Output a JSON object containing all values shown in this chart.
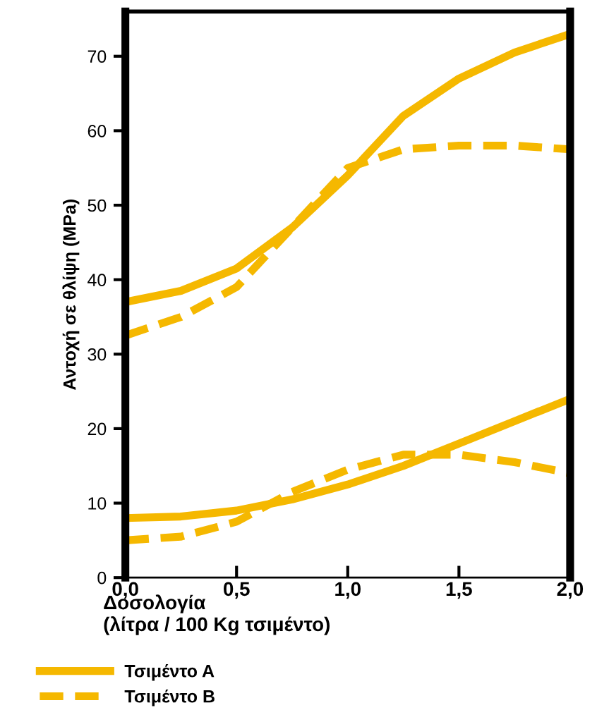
{
  "chart_data": {
    "type": "line",
    "ylabel": "Αντοχή σε θλίψη (MPa)",
    "xlabel": "Δοσολογία\n(λίτρα / 100 Kg τσιμέντο)",
    "x": [
      0,
      0.25,
      0.5,
      0.75,
      1.0,
      1.25,
      1.5,
      1.75,
      2.0
    ],
    "series": [
      {
        "name": "Τσιμέντο A",
        "color": "#f5b800",
        "line_style": "solid",
        "values": [
          37,
          38.5,
          41.5,
          47,
          54,
          62,
          67,
          70.5,
          73
        ]
      },
      {
        "color": "#f5b800",
        "line_style": "dashed",
        "values": [
          32.5,
          35,
          39,
          47,
          55,
          57.5,
          58,
          58,
          57.5
        ]
      },
      {
        "color": "#f5b800",
        "line_style": "solid",
        "values": [
          8,
          8.2,
          9,
          10.5,
          12.5,
          15,
          18,
          21,
          24
        ]
      },
      {
        "name": "Τσιμέντο B",
        "color": "#f5b800",
        "line_style": "dashed",
        "values": [
          5,
          5.5,
          7.5,
          11.5,
          14.5,
          16.5,
          16.5,
          15.5,
          14
        ]
      }
    ],
    "xlim": [
      0,
      2
    ],
    "ylim": [
      0,
      76
    ],
    "xticks": [
      {
        "value": 0,
        "label": "0,0"
      },
      {
        "value": 0.5,
        "label": "0,5"
      },
      {
        "value": 1,
        "label": "1,0"
      },
      {
        "value": 1.5,
        "label": "1,5"
      },
      {
        "value": 2,
        "label": "2,0"
      }
    ],
    "yticks": [
      0,
      10,
      20,
      30,
      40,
      50,
      60,
      70
    ],
    "grid": false,
    "legend": "bottom",
    "marker": "none"
  }
}
